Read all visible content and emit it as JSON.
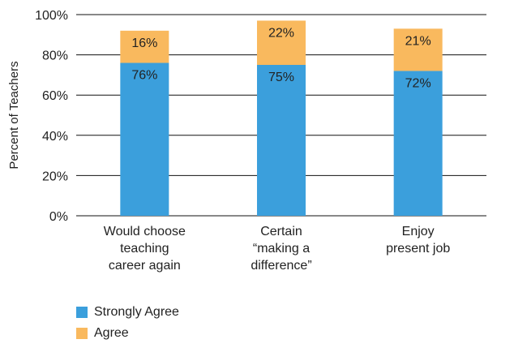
{
  "chart_data": {
    "type": "bar",
    "stacked": true,
    "ylabel": "Percent of Teachers",
    "ylim": [
      0,
      100
    ],
    "yticks": [
      "0%",
      "20%",
      "40%",
      "60%",
      "80%",
      "100%"
    ],
    "ytick_values": [
      0,
      20,
      40,
      60,
      80,
      100
    ],
    "grid": true,
    "legend_position": "bottom-left",
    "categories": [
      [
        "Would choose",
        "teaching",
        "career again"
      ],
      [
        "Certain",
        "“making a",
        "difference”"
      ],
      [
        "Enjoy",
        "present job"
      ]
    ],
    "series": [
      {
        "name": "Strongly Agree",
        "values": [
          76,
          75,
          72
        ],
        "labels": [
          "76%",
          "75%",
          "72%"
        ],
        "color": "#3b9fdc"
      },
      {
        "name": "Agree",
        "values": [
          16,
          22,
          21
        ],
        "labels": [
          "16%",
          "22%",
          "21%"
        ],
        "color": "#f9b95e"
      }
    ]
  }
}
